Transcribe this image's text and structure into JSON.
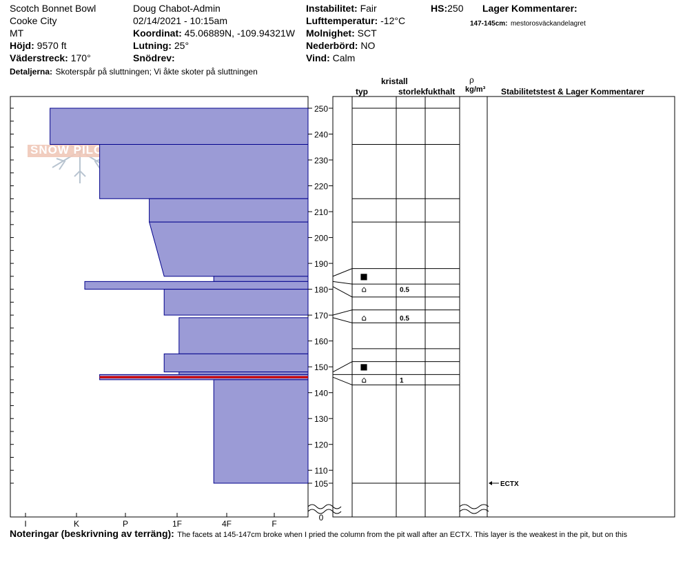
{
  "header": {
    "location": "Scotch Bonnet Bowl",
    "area": "Cooke City",
    "state": "MT",
    "elevation_label": "Höjd:",
    "elevation_value": "9570 ft",
    "aspect_label": "Väderstreck:",
    "aspect_value": "170°",
    "details_label": "Detaljerna:",
    "details_value": "Skoterspår på sluttningen; Vi åkte skoter på sluttningen",
    "observer": "Doug Chabot-Admin",
    "datetime": "02/14/2021 - 10:15am",
    "coord_label": "Koordinat:",
    "coord_value": "45.06889N, -109.94321W",
    "slope_label": "Lutning:",
    "slope_value": "25°",
    "drift_label": "Snödrev:",
    "drift_value": "",
    "instability_label": "Instabilitet:",
    "instability_value": "Fair",
    "airtemp_label": "Lufttemperatur:",
    "airtemp_value": "-12°C",
    "cloud_label": "Molnighet:",
    "cloud_value": "SCT",
    "precip_label": "Nederbörd:",
    "precip_value": "NO",
    "wind_label": "Vind:",
    "wind_value": "Calm",
    "hs_label": "HS:",
    "hs_value": "250",
    "layer_comments_label": "Lager Kommentarer:",
    "layer_comment_range": "147-145cm:",
    "layer_comment_text": "mestorosväckandelagret"
  },
  "logo": {
    "text": "SNOW PILOT"
  },
  "columns": {
    "kristall": "kristall",
    "typ": "typ",
    "storlek": "storlek",
    "fukthalt": "fukthalt",
    "rho": "ρ",
    "density_unit": "kg/m³",
    "stability": "Stabilitetstest & Lager Kommentarer"
  },
  "footer": {
    "notes_label": "Noteringar (beskrivning av terräng):",
    "notes_text": "The facets at 145-147cm broke when I pried the column from the pit wall after an ECTX. This layer is the weakest in the pit, but on this"
  },
  "chart_data": {
    "type": "snow-profile",
    "hardness_axis": [
      "I",
      "K",
      "P",
      "1F",
      "4F",
      "F"
    ],
    "depth_ticks": [
      250,
      240,
      230,
      220,
      210,
      200,
      190,
      180,
      170,
      160,
      150,
      140,
      130,
      120,
      110,
      105,
      0
    ],
    "colors": {
      "layer_fill": "#9b9bd6",
      "layer_stroke": "#00008b",
      "weak_layer": "#cc0000"
    },
    "layers": [
      {
        "top": 250,
        "bottom": 236,
        "hardness_top": 5.2,
        "hardness_bottom": 5.2
      },
      {
        "top": 236,
        "bottom": 215,
        "hardness_top": 4.2,
        "hardness_bottom": 4.2
      },
      {
        "top": 215,
        "bottom": 206,
        "hardness_top": 3.2,
        "hardness_bottom": 3.2
      },
      {
        "top": 206,
        "bottom": 185,
        "hardness_top": 3.2,
        "hardness_bottom": 2.9
      },
      {
        "top": 185,
        "bottom": 183,
        "hardness_top": 1.9,
        "hardness_bottom": 1.9
      },
      {
        "top": 183,
        "bottom": 180,
        "hardness_top": 4.5,
        "hardness_bottom": 4.5
      },
      {
        "top": 180,
        "bottom": 170,
        "hardness_top": 2.9,
        "hardness_bottom": 2.9
      },
      {
        "top": 169,
        "bottom": 155,
        "hardness_top": 2.6,
        "hardness_bottom": 2.6
      },
      {
        "top": 155,
        "bottom": 148,
        "hardness_top": 2.9,
        "hardness_bottom": 2.9
      },
      {
        "top": 148,
        "bottom": 147,
        "hardness_top": 2.6,
        "hardness_bottom": 2.6
      },
      {
        "top": 147,
        "bottom": 145,
        "hardness_top": 4.2,
        "hardness_bottom": 4.2,
        "weak": true
      },
      {
        "top": 145,
        "bottom": 105,
        "hardness_top": 1.9,
        "hardness_bottom": 1.9
      }
    ],
    "layer_boundaries": [
      250,
      236,
      215,
      206,
      188,
      182,
      177,
      172,
      167,
      157,
      152,
      147,
      143,
      105
    ],
    "crystals": [
      {
        "depth": 185,
        "symbol": "■",
        "size": ""
      },
      {
        "depth": 180,
        "symbol": "⌂",
        "size": "0.5"
      },
      {
        "depth": 169,
        "symbol": "⌂",
        "size": "0.5"
      },
      {
        "depth": 150,
        "symbol": "■",
        "size": ""
      },
      {
        "depth": 145,
        "symbol": "⌂",
        "size": "1"
      }
    ],
    "tests": [
      {
        "depth": 105,
        "label": "ECTX"
      }
    ]
  }
}
